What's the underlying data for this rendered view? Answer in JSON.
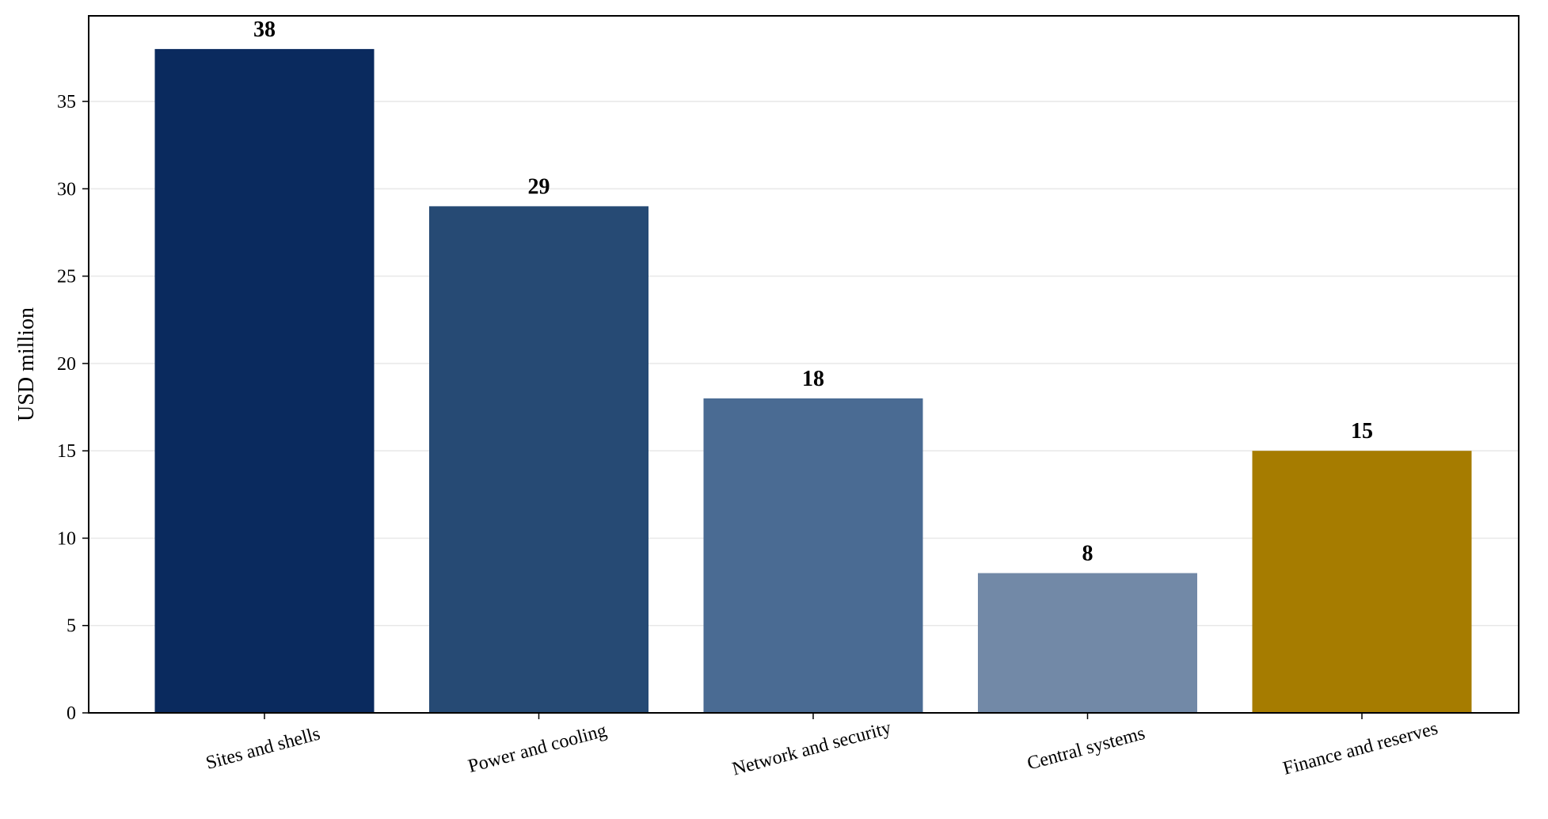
{
  "chart_data": {
    "type": "bar",
    "categories": [
      "Sites and shells",
      "Power and cooling",
      "Network and security",
      "Central systems",
      "Finance and reserves"
    ],
    "values": [
      38,
      29,
      18,
      8,
      15
    ],
    "data_labels": [
      "38",
      "29",
      "18",
      "8",
      "15"
    ],
    "colors": [
      "#0a2a5e",
      "#264a74",
      "#4a6b93",
      "#7289a7",
      "#a67c00"
    ],
    "title": "",
    "xlabel": "",
    "ylabel": "USD million",
    "ylim": [
      0,
      39.9
    ],
    "yticks": [
      0,
      5,
      10,
      15,
      20,
      25,
      30,
      35
    ],
    "ytick_labels": [
      "0",
      "5",
      "10",
      "15",
      "20",
      "25",
      "30",
      "35"
    ],
    "grid": "y",
    "grid_color": "#e8e8e8",
    "legend": "none"
  }
}
